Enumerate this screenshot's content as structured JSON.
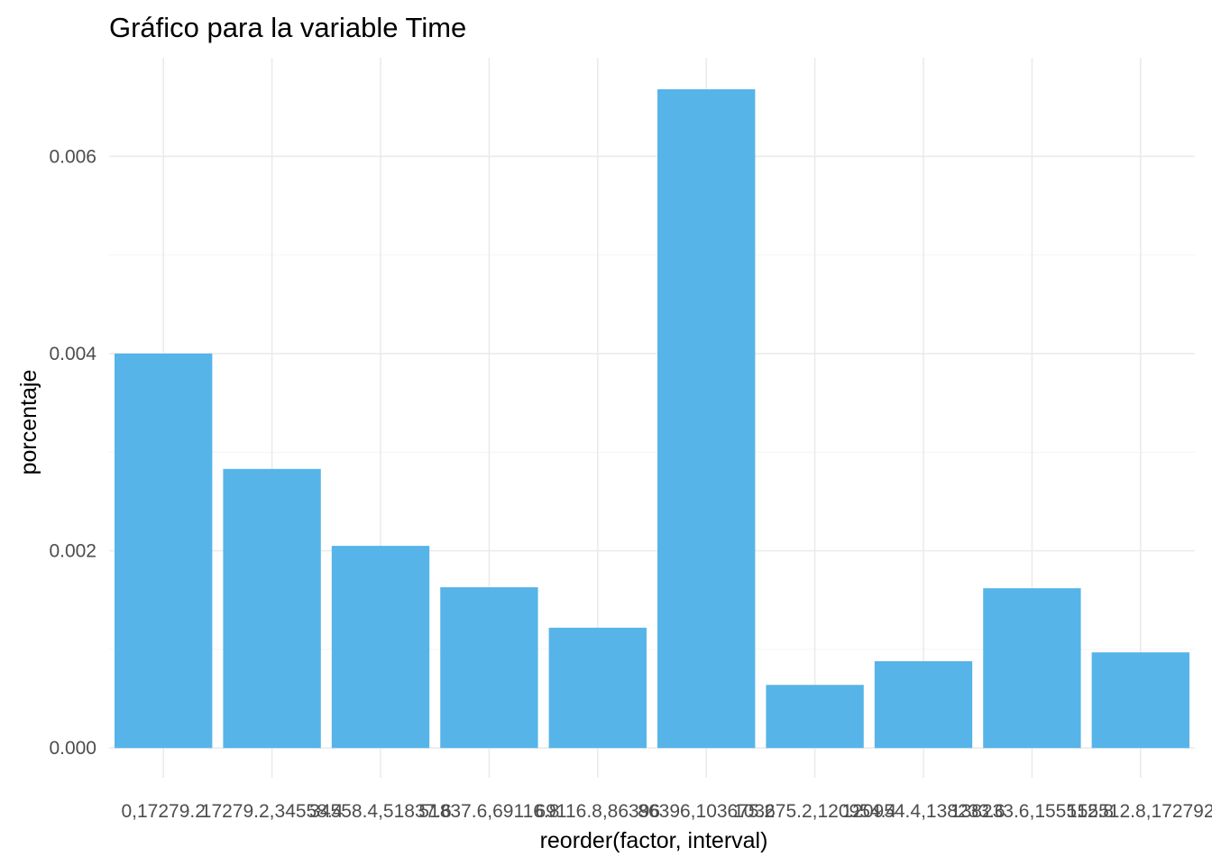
{
  "chart_data": {
    "type": "bar",
    "title": "Gráfico para la variable  Time",
    "xlabel": "reorder(factor, interval)",
    "ylabel": "porcentaje",
    "categories": [
      "0,17279.2",
      "17279.2,34558.4",
      "34558.4,51837.6",
      "51837.6,69116.8",
      "69116.8,86396",
      "86396,103675.2",
      "103675.2,120954.4",
      "120954.4,138233.6",
      "138233.6,155512.8",
      "155512.8,172792"
    ],
    "values": [
      0.004,
      0.00283,
      0.00205,
      0.00163,
      0.00122,
      0.00668,
      0.00064,
      0.00088,
      0.00162,
      0.00097
    ],
    "ylim": [
      -0.0003,
      0.007
    ],
    "yticks": [
      0.0,
      0.002,
      0.004,
      0.006
    ],
    "ytick_labels": [
      "0.000",
      "0.002",
      "0.004",
      "0.006"
    ],
    "color": "#56B4E9",
    "grid": true,
    "legend": "none"
  }
}
